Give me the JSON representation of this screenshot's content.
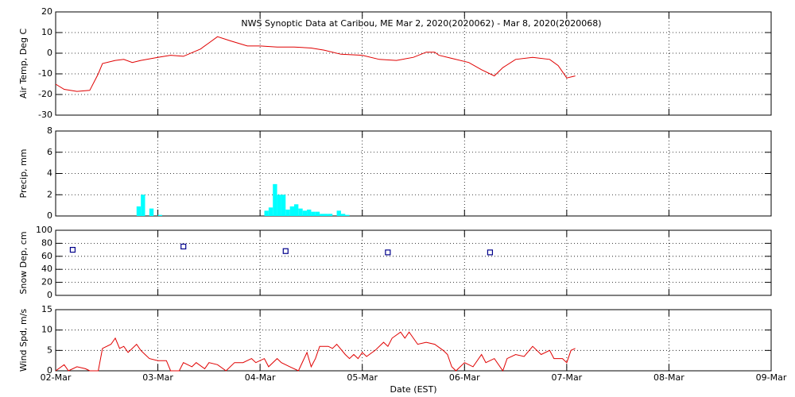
{
  "chart_data": [
    {
      "type": "line",
      "title": "NWS Synoptic Data at Caribou, ME   Mar  2, 2020(2020062) - Mar  8, 2020(2020068)",
      "ylabel": "Air Temp, Deg C",
      "x": [
        0,
        2,
        5,
        8,
        10,
        11,
        14,
        16,
        18,
        20,
        24,
        27,
        30,
        34,
        36,
        38,
        41,
        45,
        48,
        52,
        56,
        60,
        63,
        67,
        72,
        76,
        80,
        84,
        87,
        89,
        90,
        93,
        97,
        100,
        103,
        105,
        108,
        112,
        116,
        118,
        120,
        122
      ],
      "values": [
        -15,
        -17.5,
        -18.5,
        -18,
        -10,
        -5,
        -3.5,
        -3,
        -4.5,
        -3.5,
        -2,
        -1,
        -1.5,
        2,
        5,
        8,
        6,
        3.5,
        3.5,
        3,
        3,
        2.5,
        1.5,
        -0.5,
        -1,
        -3,
        -3.5,
        -2,
        0.5,
        0.5,
        -1,
        -2.5,
        -4.5,
        -8,
        -11,
        -7,
        -3,
        -2,
        -3,
        -6,
        -12,
        -11
      ],
      "color": "#e00000",
      "xlim": [
        0,
        168
      ],
      "xticks": [
        0,
        24,
        48,
        72,
        96,
        120,
        144,
        168
      ],
      "ylim": [
        -30,
        20
      ],
      "yticks": [
        -30,
        -20,
        -10,
        0,
        10,
        20
      ],
      "grid": true
    },
    {
      "type": "bar",
      "ylabel": "Precip, mm",
      "x": [
        19,
        20,
        22,
        24,
        49,
        50,
        51,
        52,
        53,
        54,
        55,
        56,
        57,
        58,
        59,
        60,
        61,
        62,
        63,
        64,
        66,
        67,
        68
      ],
      "values": [
        0.9,
        2.0,
        0.7,
        0.1,
        0.5,
        0.8,
        3.0,
        2.0,
        2.0,
        0.6,
        0.9,
        1.1,
        0.7,
        0.5,
        0.6,
        0.4,
        0.4,
        0.2,
        0.2,
        0.2,
        0.5,
        0.2,
        0.1
      ],
      "color": "#00ffff",
      "xlim": [
        0,
        168
      ],
      "xticks": [
        0,
        24,
        48,
        72,
        96,
        120,
        144,
        168
      ],
      "ylim": [
        0,
        8
      ],
      "yticks": [
        0,
        2,
        4,
        6,
        8
      ],
      "grid": true
    },
    {
      "type": "scatter",
      "ylabel": "Snow Dep, cm",
      "x": [
        4,
        30,
        54,
        78,
        102
      ],
      "values": [
        70,
        75,
        68,
        66,
        66
      ],
      "color": "#00008b",
      "xlim": [
        0,
        168
      ],
      "xticks": [
        0,
        24,
        48,
        72,
        96,
        120,
        144,
        168
      ],
      "ylim": [
        0,
        100
      ],
      "yticks": [
        0,
        20,
        40,
        60,
        80,
        100
      ],
      "grid": true
    },
    {
      "type": "line",
      "ylabel": "Wind Spd, m/s",
      "xlabel": "Date (EST)",
      "x": [
        0,
        2,
        3,
        5,
        7,
        8,
        10,
        11,
        13,
        14,
        15,
        16,
        17,
        19,
        20,
        21,
        22,
        24,
        26,
        27,
        29,
        30,
        32,
        33,
        35,
        36,
        38,
        40,
        42,
        44,
        46,
        47,
        49,
        50,
        52,
        53,
        55,
        57,
        59,
        60,
        61,
        62,
        64,
        65,
        66,
        68,
        69,
        70,
        71,
        72,
        73,
        75,
        77,
        78,
        79,
        81,
        82,
        83,
        85,
        87,
        89,
        91,
        92,
        93,
        94,
        96,
        98,
        100,
        101,
        103,
        105,
        106,
        108,
        110,
        112,
        114,
        116,
        117,
        119,
        120,
        121,
        122
      ],
      "values": [
        0,
        1.5,
        0,
        1,
        0.5,
        0,
        0,
        5.5,
        6.5,
        8,
        5.5,
        6,
        4.5,
        6.5,
        5,
        4,
        3,
        2.5,
        2.5,
        0,
        0,
        2,
        1,
        2,
        0.5,
        2,
        1.5,
        0,
        2,
        2,
        3,
        2,
        3,
        1,
        3,
        2,
        1,
        0,
        4.5,
        1,
        3,
        6,
        6,
        5.5,
        6.5,
        4,
        3,
        4,
        3,
        4.5,
        3.5,
        5,
        7,
        6,
        8,
        9.5,
        8,
        9.5,
        6.5,
        7,
        6.5,
        5,
        4,
        1,
        0,
        2,
        1,
        4,
        2,
        3,
        0,
        3,
        4,
        3.5,
        6,
        4,
        5,
        3,
        3,
        2,
        5,
        5.5
      ],
      "color": "#e00000",
      "xlim": [
        0,
        168
      ],
      "xticks": [
        {
          "value": 0,
          "label": "02-Mar"
        },
        {
          "value": 24,
          "label": "03-Mar"
        },
        {
          "value": 48,
          "label": "04-Mar"
        },
        {
          "value": 72,
          "label": "05-Mar"
        },
        {
          "value": 96,
          "label": "06-Mar"
        },
        {
          "value": 120,
          "label": "07-Mar"
        },
        {
          "value": 144,
          "label": "08-Mar"
        },
        {
          "value": 168,
          "label": "09-Mar"
        }
      ],
      "ylim": [
        0,
        15
      ],
      "yticks": [
        0,
        5,
        10,
        15
      ],
      "grid": true
    }
  ]
}
